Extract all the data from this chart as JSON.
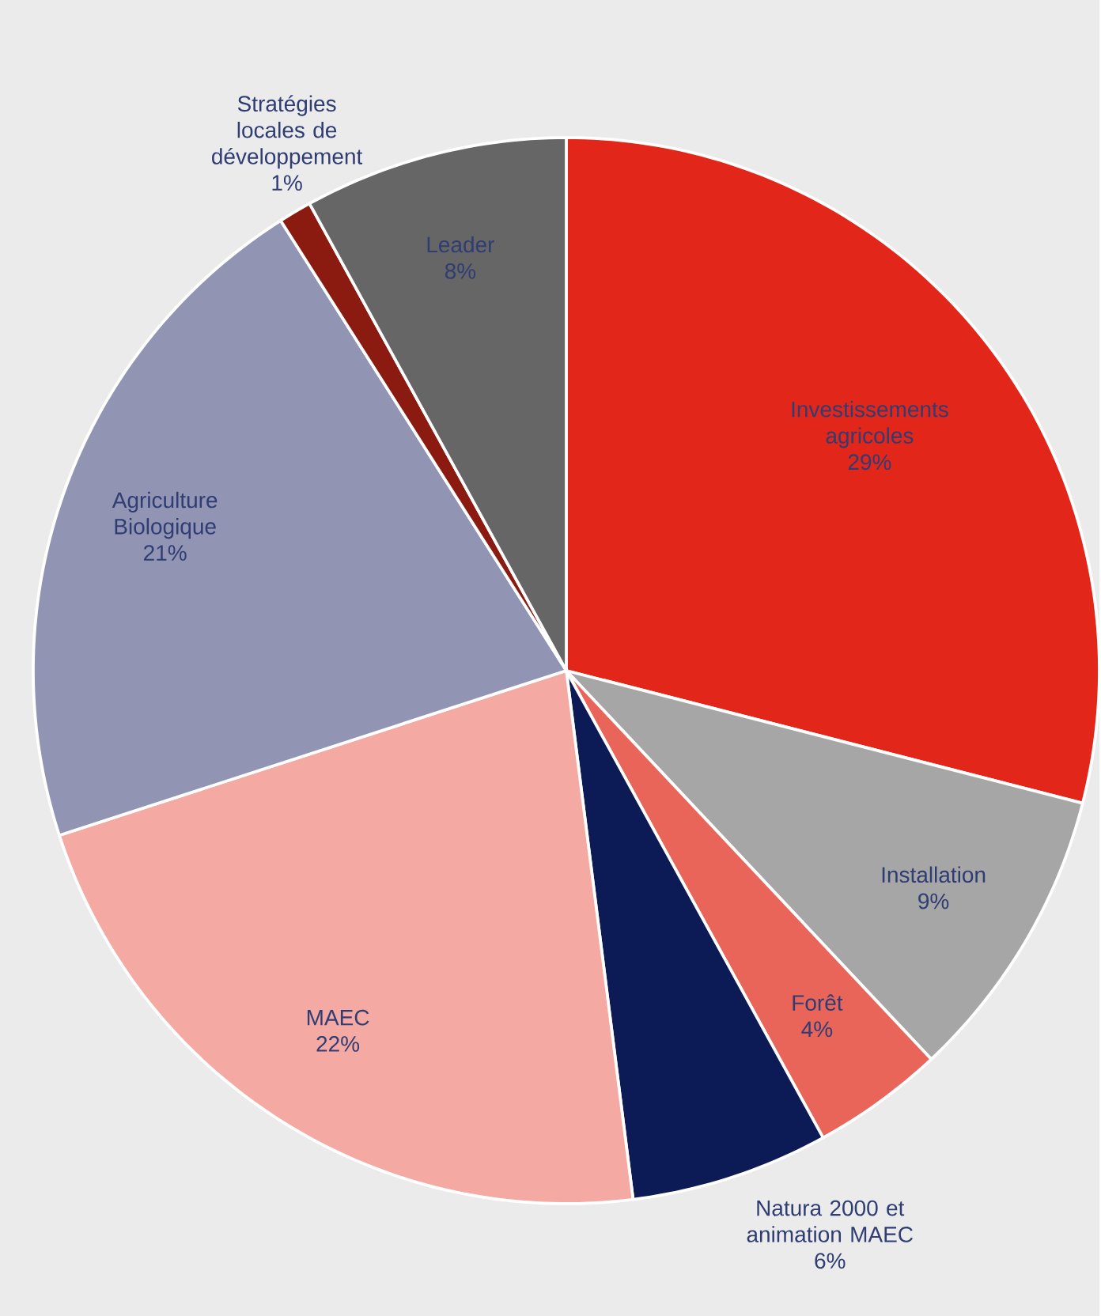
{
  "chart_data": {
    "type": "pie",
    "categories": [
      "Investissements agricoles",
      "Installation",
      "Forêt",
      "Natura 2000 et animation MAEC",
      "MAEC",
      "Agriculture Biologique",
      "Stratégies locales de développement",
      "Leader"
    ],
    "values": [
      29,
      9,
      4,
      6,
      22,
      21,
      1,
      8
    ],
    "value_labels": [
      "29%",
      "9%",
      "4%",
      "6%",
      "22%",
      "21%",
      "1%",
      "8%"
    ],
    "colors": [
      "#e3261a",
      "#a6a6a6",
      "#e9655a",
      "#0c1a55",
      "#f4a9a3",
      "#9195b3",
      "#8b1a10",
      "#666666"
    ]
  }
}
